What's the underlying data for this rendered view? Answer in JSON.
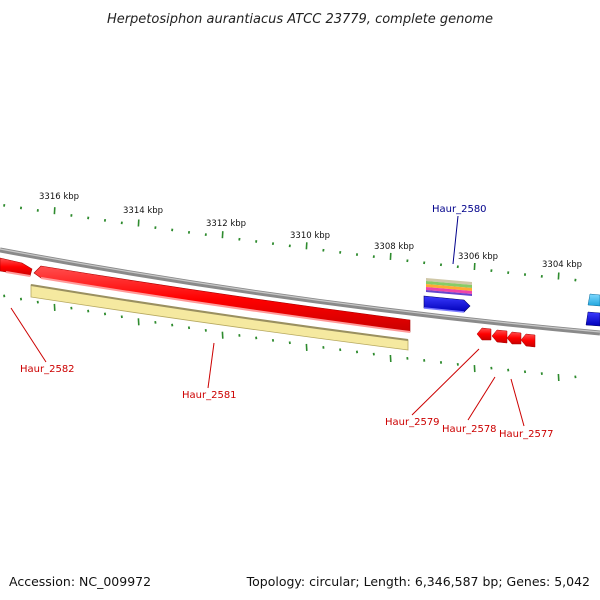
{
  "header": {
    "title": "Herpetosiphon aurantiacus ATCC 23779, complete genome"
  },
  "footer": {
    "accession": "Accession: NC_009972",
    "summary": "Topology: circular; Length: 6,346,587 bp; Genes: 5,042"
  },
  "colors": {
    "backbone": "#8a8a8a",
    "forward_gene": "#ff0000",
    "reverse_gene": "#ff0000",
    "pseudo_gene": "#f5e9a0",
    "tick": "#2e8b2e",
    "label_forward": "#00008b",
    "label_reverse": "#cc0000",
    "blue_gene": "#0000ee",
    "cyan_gene": "#33bbee"
  },
  "ruler": {
    "labels": [
      "3316 kbp",
      "3314 kbp",
      "3312 kbp",
      "3310 kbp",
      "3308 kbp",
      "3306 kbp",
      "3304 kbp"
    ]
  },
  "genes": [
    {
      "label": "Haur_2580",
      "strand": "forward"
    },
    {
      "label": "Haur_2582",
      "strand": "reverse"
    },
    {
      "label": "Haur_2581",
      "strand": "reverse"
    },
    {
      "label": "Haur_2579",
      "strand": "reverse"
    },
    {
      "label": "Haur_2578",
      "strand": "reverse"
    },
    {
      "label": "Haur_2577",
      "strand": "reverse"
    }
  ]
}
